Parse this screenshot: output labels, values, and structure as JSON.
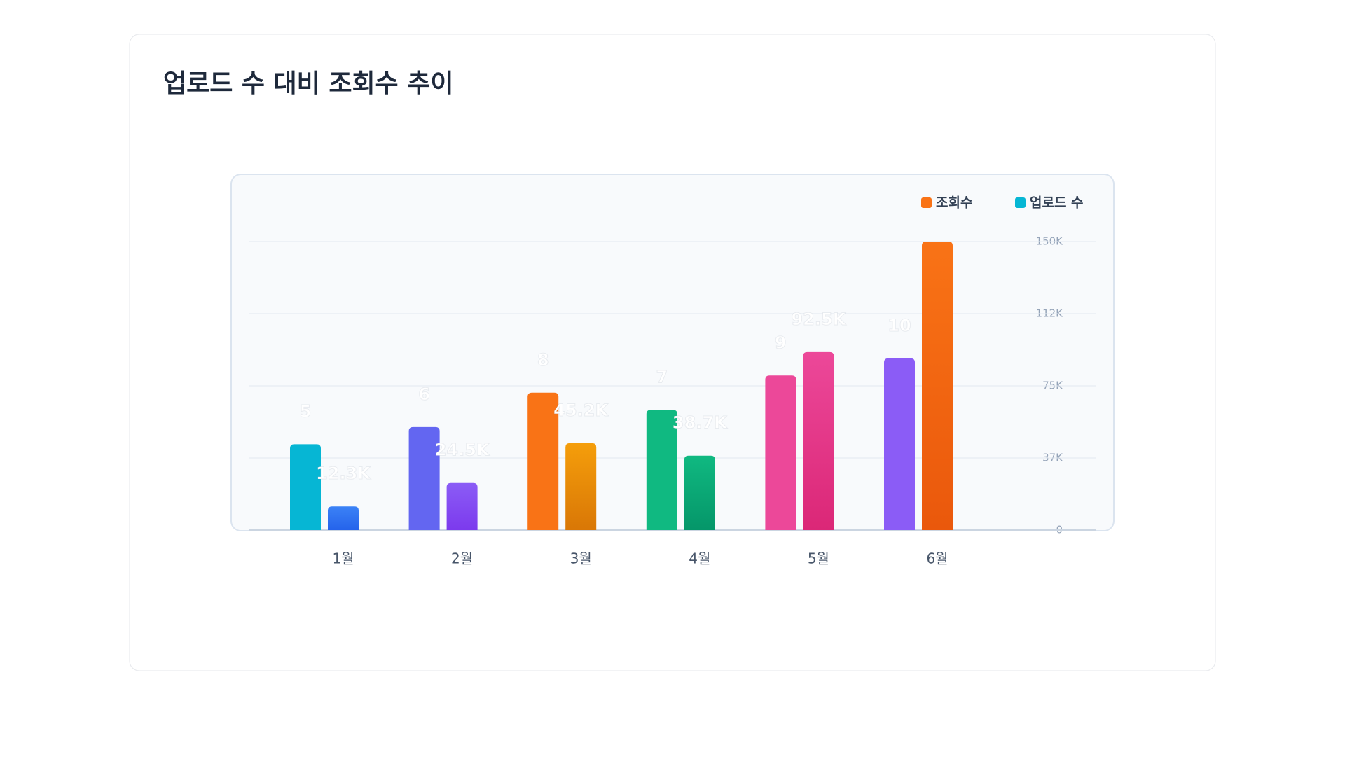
{
  "chart_data": {
    "type": "bar",
    "title": "업로드 수 대비 조회수 추이",
    "categories": [
      "1월",
      "2월",
      "3월",
      "4월",
      "5월",
      "6월"
    ],
    "series": [
      {
        "name": "업로드 수",
        "color": "#06b6d4",
        "axis": "y",
        "values": [
          5,
          6,
          8,
          7,
          9,
          10
        ],
        "colors": [
          [
            "#06b6d4",
            "#06b6d4"
          ],
          [
            "#6366f1",
            "#6366f1"
          ],
          [
            "#f97316",
            "#f97316"
          ],
          [
            "#10b981",
            "#10b981"
          ],
          [
            "#ec4899",
            "#ec4899"
          ],
          [
            "#8b5cf6",
            "#8b5cf6"
          ]
        ]
      },
      {
        "name": "조회수",
        "color": "#f97316",
        "axis": "y2",
        "values": [
          12300,
          24500,
          45200,
          38700,
          92500,
          150000
        ],
        "value_labels": [
          "12.3K",
          "24.5K",
          "45.2K",
          "38.7K",
          "92.5K",
          null
        ],
        "colors": [
          [
            "#3b82f6",
            "#2563eb"
          ],
          [
            "#8b5cf6",
            "#7c3aed"
          ],
          [
            "#f59e0b",
            "#d97706"
          ],
          [
            "#10b981",
            "#059669"
          ],
          [
            "#ec4899",
            "#db2777"
          ],
          [
            "#f97316",
            "#ea580c"
          ]
        ]
      }
    ],
    "ylim": [
      0,
      16.8
    ],
    "y2lim": [
      0,
      150000
    ],
    "y2ticks": [
      0,
      {
        "value": 37500,
        "label": "37K"
      },
      {
        "value": 75000,
        "label": "75K"
      },
      {
        "value": 112500,
        "label": "112K"
      },
      {
        "value": 150000,
        "label": "150K"
      }
    ],
    "grid": true
  }
}
